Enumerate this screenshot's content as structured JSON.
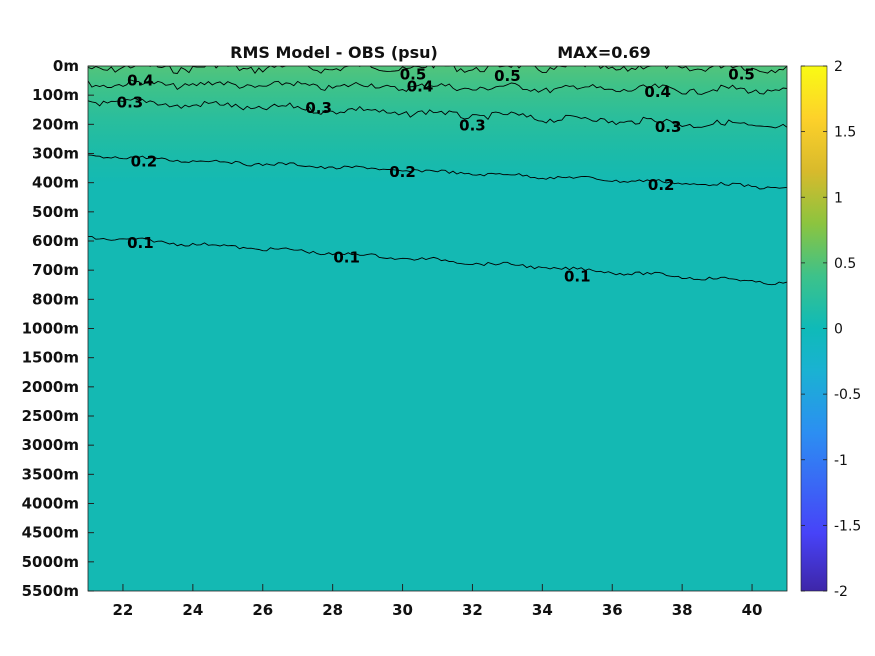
{
  "chart_data": {
    "type": "heatmap",
    "title": "RMS Model - OBS (psu)",
    "max_label": "MAX=0.69",
    "x_ticks": [
      "22",
      "24",
      "26",
      "28",
      "30",
      "32",
      "34",
      "36",
      "38",
      "40"
    ],
    "xlim": [
      21,
      41
    ],
    "y_ticks": [
      "0m",
      "100m",
      "200m",
      "300m",
      "400m",
      "500m",
      "600m",
      "700m",
      "800m",
      "1000m",
      "1500m",
      "2000m",
      "2500m",
      "3000m",
      "3500m",
      "4000m",
      "4500m",
      "5000m",
      "5500m"
    ],
    "colorbar": {
      "range": [
        -2,
        2
      ],
      "ticks": [
        "2",
        "1.5",
        "1",
        "0.5",
        "0",
        "-0.5",
        "-1",
        "-1.5",
        "-2"
      ],
      "colormap": [
        "#3e26a8",
        "#4743f8",
        "#2c8ef2",
        "#1ab2d2",
        "#0fbab8",
        "#3dc28a",
        "#8cc43f",
        "#d8ba2c",
        "#fdd12a",
        "#f9fb14"
      ]
    },
    "contours": [
      {
        "level": 0.5,
        "label": "0.5",
        "y_start": 5,
        "y_end": 5
      },
      {
        "level": 0.4,
        "label": "0.4",
        "y_start": 60,
        "y_end": 85
      },
      {
        "level": 0.3,
        "label": "0.3",
        "y_start": 120,
        "y_end": 210
      },
      {
        "level": 0.2,
        "label": "0.2",
        "y_start": 310,
        "y_end": 420
      },
      {
        "level": 0.1,
        "label": "0.1",
        "y_start": 590,
        "y_end": 750
      }
    ],
    "contour_labels": [
      {
        "text": "0.4",
        "x": 22.5,
        "y": 50
      },
      {
        "text": "0.5",
        "x": 30.3,
        "y": 30
      },
      {
        "text": "0.5",
        "x": 33.0,
        "y": 35
      },
      {
        "text": "0.5",
        "x": 39.7,
        "y": 30
      },
      {
        "text": "0.4",
        "x": 30.5,
        "y": 70
      },
      {
        "text": "0.4",
        "x": 37.3,
        "y": 90
      },
      {
        "text": "0.3",
        "x": 22.2,
        "y": 125
      },
      {
        "text": "0.3",
        "x": 27.6,
        "y": 145
      },
      {
        "text": "0.3",
        "x": 32.0,
        "y": 205
      },
      {
        "text": "0.3",
        "x": 37.6,
        "y": 210
      },
      {
        "text": "0.2",
        "x": 22.6,
        "y": 330
      },
      {
        "text": "0.2",
        "x": 30.0,
        "y": 365
      },
      {
        "text": "0.2",
        "x": 37.4,
        "y": 410
      },
      {
        "text": "0.1",
        "x": 22.5,
        "y": 610
      },
      {
        "text": "0.1",
        "x": 28.4,
        "y": 660
      },
      {
        "text": "0.1",
        "x": 35.0,
        "y": 725
      }
    ],
    "grid": false
  }
}
